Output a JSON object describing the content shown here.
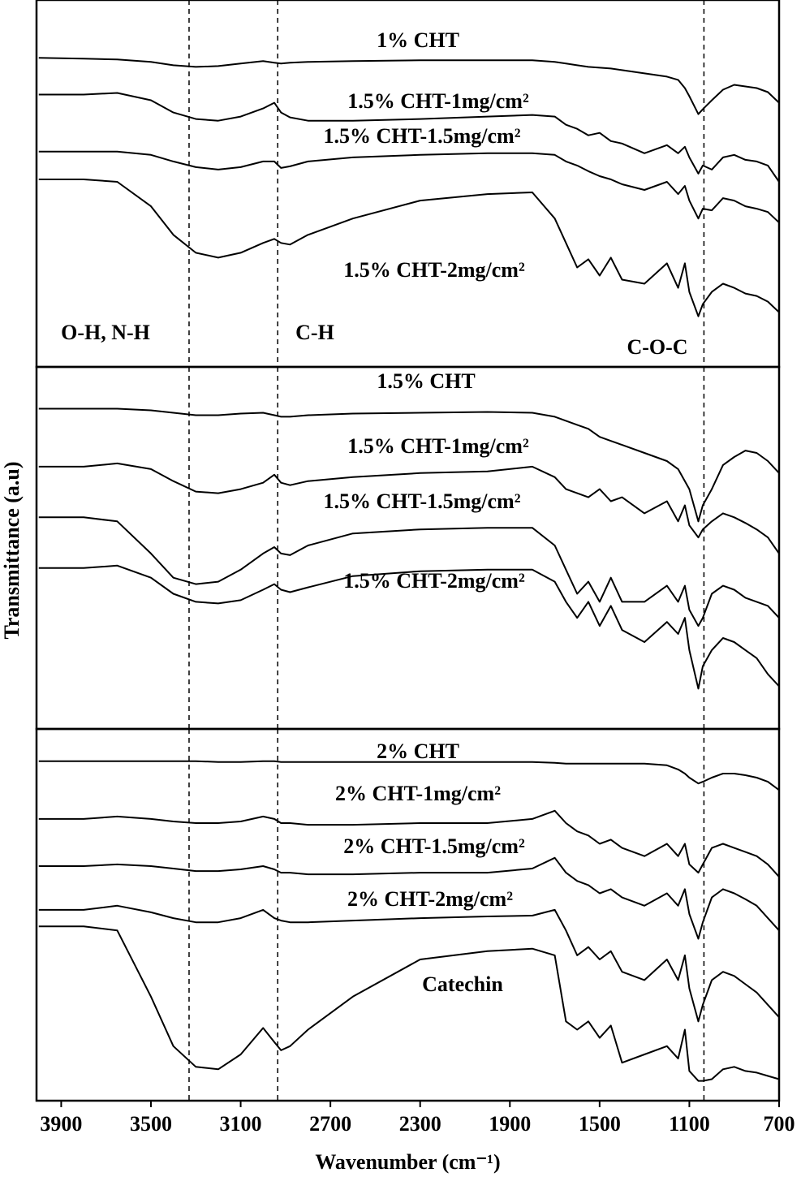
{
  "chart_data": [
    {
      "type": "line",
      "x": [
        4000,
        3800,
        3650,
        3500,
        3400,
        3300,
        3200,
        3100,
        3000,
        2950,
        2920,
        2880,
        2800,
        2600,
        2300,
        2000,
        1800,
        1700,
        1650,
        1600,
        1550,
        1500,
        1450,
        1400,
        1300,
        1200,
        1150,
        1120,
        1100,
        1060,
        1040,
        1000,
        950,
        900,
        850,
        800,
        750,
        700
      ],
      "xlim": [
        4010,
        700
      ],
      "ylim": [
        0,
        450
      ],
      "vlines": [
        3330,
        2935,
        1035
      ],
      "annotations": [
        "O-H, N-H",
        "C-H",
        "C-O-C"
      ],
      "series": [
        {
          "name": "1% CHT",
          "color": "#000000",
          "values": [
            379,
            378,
            377,
            374,
            370,
            368,
            369,
            372,
            375,
            373,
            372,
            373,
            374,
            375,
            376,
            376,
            376,
            374,
            372,
            370,
            368,
            367,
            366,
            364,
            360,
            356,
            352,
            342,
            332,
            310,
            316,
            327,
            340,
            346,
            344,
            342,
            337,
            324
          ]
        },
        {
          "name": "1.5% CHT-1mg/cm²",
          "color": "#000000",
          "values": [
            334,
            334,
            336,
            327,
            312,
            304,
            302,
            307,
            317,
            324,
            312,
            306,
            302,
            302,
            304,
            307,
            309,
            307,
            297,
            292,
            284,
            287,
            277,
            274,
            262,
            272,
            262,
            270,
            257,
            237,
            247,
            242,
            257,
            260,
            254,
            252,
            247,
            227
          ]
        },
        {
          "name": "1.5% CHT-1.5mg/cm²",
          "color": "#000000",
          "values": [
            264,
            264,
            264,
            260,
            252,
            245,
            242,
            245,
            252,
            252,
            244,
            246,
            252,
            257,
            260,
            262,
            262,
            260,
            252,
            247,
            240,
            234,
            230,
            224,
            217,
            227,
            212,
            222,
            204,
            182,
            194,
            192,
            207,
            204,
            197,
            194,
            190,
            177
          ]
        },
        {
          "name": "1.5% CHT-2mg/cm²",
          "color": "#000000",
          "values": [
            230,
            230,
            227,
            197,
            162,
            140,
            134,
            140,
            152,
            157,
            152,
            150,
            162,
            182,
            204,
            212,
            214,
            182,
            152,
            122,
            132,
            112,
            134,
            107,
            102,
            127,
            97,
            127,
            92,
            62,
            77,
            92,
            102,
            97,
            90,
            87,
            80,
            67
          ]
        }
      ]
    },
    {
      "type": "line",
      "x": [
        4000,
        3800,
        3650,
        3500,
        3400,
        3300,
        3200,
        3100,
        3000,
        2950,
        2920,
        2880,
        2800,
        2600,
        2300,
        2000,
        1800,
        1700,
        1650,
        1600,
        1550,
        1500,
        1450,
        1400,
        1300,
        1200,
        1150,
        1120,
        1100,
        1060,
        1040,
        1000,
        950,
        900,
        850,
        800,
        750,
        700
      ],
      "xlim": [
        4010,
        700
      ],
      "ylim": [
        0,
        450
      ],
      "vlines": [
        3330,
        2935,
        1035
      ],
      "ylabel": "Transmittance (a.u)",
      "series": [
        {
          "name": "1.5% CHT",
          "color": "#000000",
          "values": [
            398,
            398,
            398,
            396,
            393,
            390,
            390,
            392,
            393,
            390,
            388,
            388,
            390,
            392,
            393,
            394,
            393,
            388,
            383,
            378,
            373,
            363,
            358,
            353,
            343,
            333,
            323,
            308,
            298,
            258,
            278,
            298,
            328,
            338,
            346,
            343,
            333,
            318
          ]
        },
        {
          "name": "1.5% CHT-1mg/cm²",
          "color": "#000000",
          "values": [
            326,
            326,
            330,
            323,
            308,
            295,
            293,
            298,
            306,
            316,
            306,
            303,
            308,
            313,
            318,
            320,
            326,
            313,
            298,
            293,
            288,
            298,
            283,
            288,
            268,
            283,
            258,
            278,
            253,
            238,
            248,
            258,
            268,
            263,
            256,
            248,
            238,
            218
          ]
        },
        {
          "name": "1.5% CHT-1.5mg/cm²",
          "color": "#000000",
          "values": [
            263,
            263,
            258,
            218,
            188,
            180,
            183,
            198,
            218,
            226,
            218,
            216,
            228,
            243,
            248,
            250,
            250,
            228,
            198,
            168,
            183,
            158,
            188,
            158,
            158,
            178,
            158,
            178,
            148,
            128,
            138,
            168,
            178,
            173,
            163,
            158,
            153,
            138
          ]
        },
        {
          "name": "1.5% CHT-2mg/cm²",
          "color": "#000000",
          "values": [
            200,
            200,
            203,
            188,
            168,
            158,
            156,
            160,
            173,
            180,
            173,
            170,
            176,
            190,
            196,
            198,
            198,
            183,
            158,
            138,
            158,
            128,
            153,
            123,
            108,
            133,
            118,
            138,
            98,
            50,
            78,
            98,
            113,
            108,
            98,
            88,
            68,
            53
          ]
        }
      ]
    },
    {
      "type": "line",
      "x": [
        4000,
        3800,
        3650,
        3500,
        3400,
        3300,
        3200,
        3100,
        3000,
        2950,
        2920,
        2880,
        2800,
        2600,
        2300,
        2000,
        1800,
        1700,
        1650,
        1600,
        1550,
        1500,
        1450,
        1400,
        1300,
        1200,
        1150,
        1120,
        1100,
        1060,
        1040,
        1000,
        950,
        900,
        850,
        800,
        750,
        700
      ],
      "xlim": [
        4010,
        700
      ],
      "ylim": [
        0,
        450
      ],
      "vlines": [
        3330,
        2935,
        1035
      ],
      "xticks": [
        3900,
        3500,
        3100,
        2700,
        2300,
        1900,
        1500,
        1100,
        700
      ],
      "xlabel": "Wavenumber (cm⁻¹)",
      "series": [
        {
          "name": "2% CHT",
          "color": "#000000",
          "values": [
            411,
            411,
            411,
            411,
            411,
            411,
            410,
            410,
            411,
            411,
            410,
            410,
            410,
            410,
            410,
            410,
            410,
            409,
            408,
            408,
            408,
            408,
            408,
            408,
            408,
            406,
            401,
            396,
            391,
            384,
            386,
            391,
            396,
            396,
            394,
            391,
            386,
            376
          ]
        },
        {
          "name": "2% CHT-1mg/cm²",
          "color": "#000000",
          "values": [
            341,
            341,
            344,
            341,
            338,
            336,
            336,
            338,
            344,
            341,
            336,
            336,
            334,
            334,
            336,
            336,
            341,
            351,
            336,
            326,
            321,
            311,
            316,
            306,
            296,
            311,
            296,
            311,
            286,
            276,
            286,
            306,
            311,
            306,
            301,
            296,
            286,
            271
          ]
        },
        {
          "name": "2% CHT-1.5mg/cm²",
          "color": "#000000",
          "values": [
            284,
            284,
            286,
            284,
            281,
            278,
            278,
            280,
            284,
            280,
            276,
            276,
            274,
            274,
            276,
            276,
            281,
            294,
            276,
            266,
            261,
            251,
            256,
            246,
            236,
            251,
            236,
            256,
            226,
            196,
            216,
            246,
            256,
            251,
            244,
            236,
            221,
            206
          ]
        },
        {
          "name": "2% CHT-2mg/cm²",
          "color": "#000000",
          "values": [
            231,
            231,
            236,
            228,
            221,
            216,
            216,
            221,
            231,
            221,
            218,
            216,
            216,
            218,
            221,
            223,
            224,
            231,
            206,
            176,
            186,
            171,
            181,
            156,
            146,
            171,
            146,
            176,
            136,
            96,
            116,
            146,
            156,
            151,
            141,
            131,
            116,
            101
          ]
        },
        {
          "name": "Catechin",
          "color": "#000000",
          "values": [
            211,
            211,
            206,
            126,
            66,
            41,
            38,
            56,
            88,
            71,
            61,
            66,
            86,
            126,
            171,
            181,
            184,
            176,
            96,
            86,
            96,
            76,
            91,
            46,
            56,
            66,
            51,
            86,
            36,
            24,
            24,
            26,
            38,
            41,
            36,
            34,
            30,
            26
          ]
        }
      ]
    }
  ]
}
